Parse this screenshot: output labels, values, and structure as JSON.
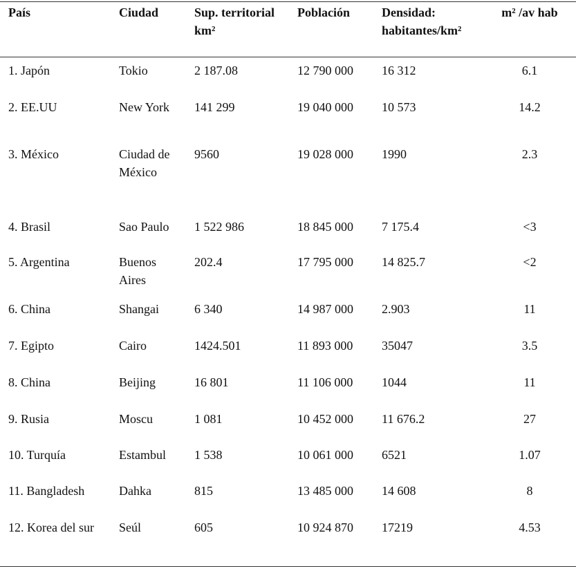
{
  "table": {
    "header": [
      "País",
      "Ciudad",
      "Sup. territorial km²",
      "Población",
      "Densidad: habitantes/km²",
      "m² /av hab"
    ],
    "rows": [
      [
        "1. Japón",
        "Tokio",
        "2 187.08",
        "12 790 000",
        "16 312",
        "6.1"
      ],
      [
        "2. EE.UU",
        "New York",
        "141 299",
        "19 040 000",
        "10 573",
        "14.2"
      ],
      [
        "3. México",
        "Ciudad de México",
        "9560",
        "19 028 000",
        "1990",
        "2.3"
      ],
      [
        "4. Brasil",
        "Sao Paulo",
        "1 522 986",
        "18 845 000",
        "7 175.4",
        "<3"
      ],
      [
        "5. Argentina",
        "Buenos Aires",
        "202.4",
        "17 795 000",
        "14 825.7",
        "<2"
      ],
      [
        "6. China",
        "Shangai",
        "6 340",
        "14 987 000",
        "2.903",
        "11"
      ],
      [
        "7. Egipto",
        "Cairo",
        "1424.501",
        "11 893 000",
        "35047",
        "3.5"
      ],
      [
        "8. China",
        "Beijing",
        "16 801",
        "11 106 000",
        "1044",
        "11"
      ],
      [
        "9. Rusia",
        "Moscu",
        "1 081",
        "10 452 000",
        "11 676.2",
        "27"
      ],
      [
        "10. Turquía",
        "Estambul",
        "1 538",
        "10 061 000",
        "6521",
        "1.07"
      ],
      [
        "11. Bangladesh",
        "Dahka",
        "815",
        "13 485 000",
        "14 608",
        "8"
      ],
      [
        "12. Korea del sur",
        "Seúl",
        "605",
        "10 924 870",
        "17219",
        "4.53"
      ]
    ]
  }
}
